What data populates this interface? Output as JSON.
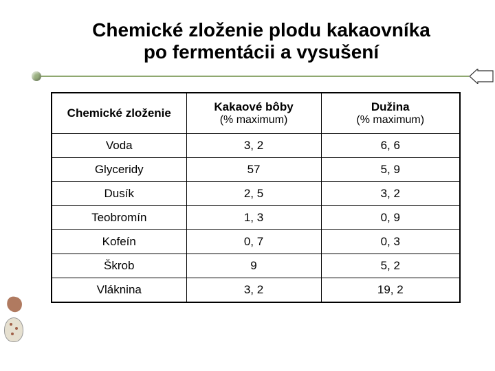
{
  "title": {
    "line1": "Chemické zloženie plodu kakaovníka",
    "line2": "po fermentácii a vysušení"
  },
  "divider": {
    "color": "#8fa870",
    "bullet_color": "#9ab080",
    "arrow_stroke": "#333333",
    "arrow_fill": "#ffffff"
  },
  "table": {
    "type": "table",
    "columns": [
      {
        "header": "Chemické zloženie",
        "subheader": "",
        "width": "33%",
        "align": "center"
      },
      {
        "header": "Kakaové bôby",
        "subheader": "(% maximum)",
        "width": "33%",
        "align": "center"
      },
      {
        "header": "Dužina",
        "subheader": "(% maximum)",
        "width": "34%",
        "align": "center"
      }
    ],
    "rows": [
      [
        "Voda",
        "3, 2",
        "6, 6"
      ],
      [
        "Glyceridy",
        "57",
        "5, 9"
      ],
      [
        "Dusík",
        "2, 5",
        "3, 2"
      ],
      [
        "Teobromín",
        "1, 3",
        "0, 9"
      ],
      [
        "Kofeín",
        "0, 7",
        "0, 3"
      ],
      [
        "Škrob",
        "9",
        "5, 2"
      ],
      [
        "Vláknina",
        "3, 2",
        "19, 2"
      ]
    ],
    "border_color": "#000000",
    "background_color": "#ffffff",
    "header_fontsize": 17,
    "cell_fontsize": 17,
    "font_weight_header": "bold",
    "font_weight_cell": "normal"
  }
}
